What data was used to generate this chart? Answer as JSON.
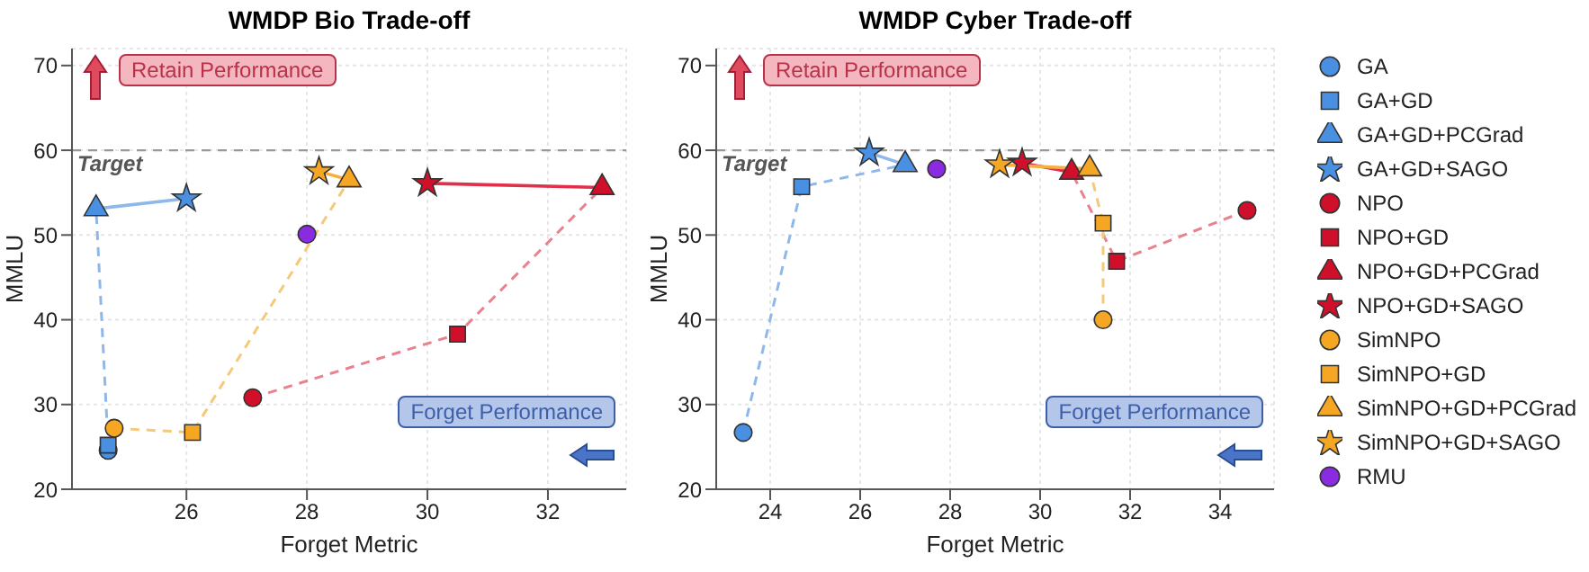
{
  "chart_data": [
    {
      "type": "scatter",
      "title": "WMDP Bio Trade-off",
      "xlabel": "Forget Metric",
      "ylabel": "MMLU",
      "xlim": [
        24.1,
        33.3
      ],
      "xticks": [
        26,
        28,
        30,
        32
      ],
      "ylim": [
        20,
        72
      ],
      "yticks": [
        20,
        30,
        40,
        50,
        60,
        70
      ],
      "grid": true,
      "legend": false,
      "annotations": [
        "Retain Performance",
        "Forget Performance"
      ],
      "ref_lines": [
        {
          "axis": "y",
          "value": 60,
          "label": "Target",
          "color": "#999999",
          "line_style": "dashed"
        }
      ],
      "series": [
        {
          "type": "line",
          "color": "#8fb8ea",
          "line_style": "dashed",
          "x": [
            24.7,
            24.7,
            24.5
          ],
          "values": [
            24.6,
            25.2,
            53.1
          ]
        },
        {
          "type": "line",
          "color": "#8fb8ea",
          "line_style": "solid",
          "x": [
            24.5,
            26.0
          ],
          "values": [
            53.1,
            54.3
          ]
        },
        {
          "type": "line",
          "color": "#e8828e",
          "line_style": "dashed",
          "x": [
            27.1,
            30.5,
            32.9
          ],
          "values": [
            30.8,
            38.3,
            55.6
          ]
        },
        {
          "type": "line",
          "color": "#e0304a",
          "line_style": "solid",
          "x": [
            32.9,
            30.0
          ],
          "values": [
            55.6,
            56.1
          ]
        },
        {
          "type": "line",
          "color": "#f5c97a",
          "line_style": "dashed",
          "x": [
            24.8,
            26.1,
            28.7
          ],
          "values": [
            27.2,
            26.7,
            56.5
          ]
        },
        {
          "type": "line",
          "color": "#f5b040",
          "line_style": "solid",
          "x": [
            28.7,
            28.2
          ],
          "values": [
            56.5,
            57.5
          ]
        },
        {
          "color": "#4a90e2",
          "marker": "circle",
          "x": [
            24.7
          ],
          "values": [
            24.6
          ]
        },
        {
          "color": "#4a90e2",
          "marker": "square",
          "x": [
            24.7
          ],
          "values": [
            25.2
          ]
        },
        {
          "color": "#4a90e2",
          "marker": "triangle",
          "x": [
            24.5
          ],
          "values": [
            53.1
          ]
        },
        {
          "color": "#4a90e2",
          "marker": "star",
          "x": [
            26.0
          ],
          "values": [
            54.3
          ]
        },
        {
          "color": "#d0102a",
          "marker": "circle",
          "x": [
            27.1
          ],
          "values": [
            30.8
          ]
        },
        {
          "color": "#d0102a",
          "marker": "square",
          "x": [
            30.5
          ],
          "values": [
            38.3
          ]
        },
        {
          "color": "#d0102a",
          "marker": "triangle",
          "x": [
            32.9
          ],
          "values": [
            55.6
          ]
        },
        {
          "color": "#d0102a",
          "marker": "star",
          "x": [
            30.0
          ],
          "values": [
            56.1
          ]
        },
        {
          "color": "#f5a623",
          "marker": "circle",
          "x": [
            24.8
          ],
          "values": [
            27.2
          ]
        },
        {
          "color": "#f5a623",
          "marker": "square",
          "x": [
            26.1
          ],
          "values": [
            26.7
          ]
        },
        {
          "color": "#f5a623",
          "marker": "triangle",
          "x": [
            28.7
          ],
          "values": [
            56.5
          ]
        },
        {
          "color": "#f5a623",
          "marker": "star",
          "x": [
            28.2
          ],
          "values": [
            57.5
          ]
        },
        {
          "color": "#8a2be2",
          "marker": "circle",
          "x": [
            28.0
          ],
          "values": [
            50.1
          ]
        }
      ]
    },
    {
      "type": "scatter",
      "title": "WMDP Cyber Trade-off",
      "xlabel": "Forget Metric",
      "ylabel": "MMLU",
      "xlim": [
        22.8,
        35.2
      ],
      "xticks": [
        24,
        26,
        28,
        30,
        32,
        34
      ],
      "ylim": [
        20,
        72
      ],
      "yticks": [
        20,
        30,
        40,
        50,
        60,
        70
      ],
      "grid": true,
      "legend": "right",
      "annotations": [
        "Retain Performance",
        "Forget Performance"
      ],
      "ref_lines": [
        {
          "axis": "y",
          "value": 60,
          "label": "Target",
          "color": "#999999",
          "line_style": "dashed"
        }
      ],
      "series": [
        {
          "type": "line",
          "color": "#8fb8ea",
          "line_style": "dashed",
          "x": [
            23.4,
            24.7,
            27.0
          ],
          "values": [
            26.7,
            55.7,
            58.3
          ]
        },
        {
          "type": "line",
          "color": "#8fb8ea",
          "line_style": "solid",
          "x": [
            27.0,
            26.2
          ],
          "values": [
            58.3,
            59.7
          ]
        },
        {
          "type": "line",
          "color": "#e8828e",
          "line_style": "dashed",
          "x": [
            34.6,
            31.7,
            30.7
          ],
          "values": [
            52.9,
            46.9,
            57.4
          ]
        },
        {
          "type": "line",
          "color": "#e0304a",
          "line_style": "solid",
          "x": [
            30.7,
            29.6
          ],
          "values": [
            57.4,
            58.5
          ]
        },
        {
          "type": "line",
          "color": "#f5c97a",
          "line_style": "dashed",
          "x": [
            31.4,
            31.4,
            31.1
          ],
          "values": [
            40.0,
            51.4,
            57.8
          ]
        },
        {
          "type": "line",
          "color": "#f5b040",
          "line_style": "solid",
          "x": [
            31.1,
            29.1
          ],
          "values": [
            57.8,
            58.3
          ]
        },
        {
          "name": "GA",
          "color": "#4a90e2",
          "marker": "circle",
          "x": [
            23.4
          ],
          "values": [
            26.7
          ]
        },
        {
          "name": "GA+GD",
          "color": "#4a90e2",
          "marker": "square",
          "x": [
            24.7
          ],
          "values": [
            55.7
          ]
        },
        {
          "name": "GA+GD+PCGrad",
          "color": "#4a90e2",
          "marker": "triangle",
          "x": [
            27.0
          ],
          "values": [
            58.3
          ]
        },
        {
          "name": "GA+GD+SAGO",
          "color": "#4a90e2",
          "marker": "star",
          "x": [
            26.2
          ],
          "values": [
            59.7
          ]
        },
        {
          "name": "NPO",
          "color": "#d0102a",
          "marker": "circle",
          "x": [
            34.6
          ],
          "values": [
            52.9
          ]
        },
        {
          "name": "NPO+GD",
          "color": "#d0102a",
          "marker": "square",
          "x": [
            31.7
          ],
          "values": [
            46.9
          ]
        },
        {
          "name": "NPO+GD+PCGrad",
          "color": "#d0102a",
          "marker": "triangle",
          "x": [
            30.7
          ],
          "values": [
            57.4
          ]
        },
        {
          "name": "NPO+GD+SAGO",
          "color": "#d0102a",
          "marker": "star",
          "x": [
            29.6
          ],
          "values": [
            58.5
          ]
        },
        {
          "name": "SimNPO",
          "color": "#f5a623",
          "marker": "circle",
          "x": [
            31.4
          ],
          "values": [
            40.0
          ]
        },
        {
          "name": "SimNPO+GD",
          "color": "#f5a623",
          "marker": "square",
          "x": [
            31.4
          ],
          "values": [
            51.4
          ]
        },
        {
          "name": "SimNPO+GD+PCGrad",
          "color": "#f5a623",
          "marker": "triangle",
          "x": [
            31.1
          ],
          "values": [
            57.8
          ]
        },
        {
          "name": "SimNPO+GD+SAGO",
          "color": "#f5a623",
          "marker": "star",
          "x": [
            29.1
          ],
          "values": [
            58.3
          ]
        },
        {
          "name": "RMU",
          "color": "#8a2be2",
          "marker": "circle",
          "x": [
            27.7
          ],
          "values": [
            57.8
          ]
        }
      ]
    }
  ]
}
